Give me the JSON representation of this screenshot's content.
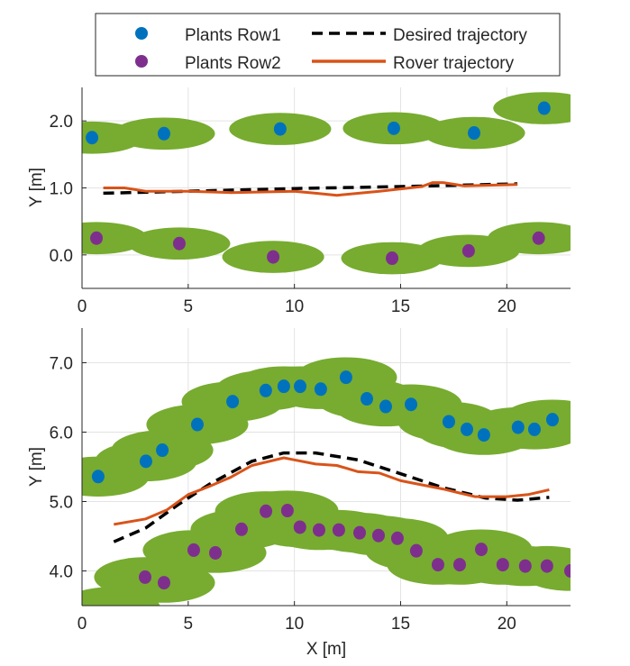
{
  "chart_data": {
    "type": "scatter",
    "colors": {
      "row1": "#0072bd",
      "row2": "#7e2f8e",
      "desired": "#000000",
      "rover": "#d95319",
      "canopy": "#77ac30"
    },
    "legend": {
      "placement": "top",
      "entries": [
        "Plants Row1",
        "Plants Row2",
        "Desired trajectory",
        "Rover trajectory"
      ]
    },
    "xlabel": "X [m]",
    "canopy_semi_axes_m": [
      2.4,
      0.24
    ],
    "panels": [
      {
        "ylabel": "Y [m]",
        "xlim": [
          0,
          23
        ],
        "ylim": [
          -0.5,
          2.5
        ],
        "xticks": [
          0,
          5,
          10,
          15,
          20
        ],
        "xtick_labels": [
          "0",
          "5",
          "10",
          "15",
          "20"
        ],
        "yticks": [
          0,
          1,
          2
        ],
        "ytick_labels": [
          "0.0",
          "1.0",
          "2.0"
        ],
        "grid": true,
        "row1": [
          [
            0.47,
            1.75
          ],
          [
            3.86,
            1.81
          ],
          [
            9.33,
            1.88
          ],
          [
            14.68,
            1.89
          ],
          [
            18.46,
            1.82
          ],
          [
            21.76,
            2.19
          ]
        ],
        "row2": [
          [
            0.68,
            0.25
          ],
          [
            4.58,
            0.17
          ],
          [
            9.0,
            -0.03
          ],
          [
            14.6,
            -0.05
          ],
          [
            18.2,
            0.06
          ],
          [
            21.5,
            0.25
          ]
        ],
        "desired": [
          [
            1,
            0.92
          ],
          [
            5,
            0.95
          ],
          [
            10,
            0.99
          ],
          [
            15,
            1.02
          ],
          [
            20.5,
            1.06
          ]
        ],
        "rover": [
          [
            1,
            1.0
          ],
          [
            2,
            1.0
          ],
          [
            3,
            0.95
          ],
          [
            5,
            0.95
          ],
          [
            7,
            0.93
          ],
          [
            10,
            0.95
          ],
          [
            11,
            0.92
          ],
          [
            12,
            0.89
          ],
          [
            14,
            0.95
          ],
          [
            16,
            1.02
          ],
          [
            16.5,
            1.08
          ],
          [
            17,
            1.08
          ],
          [
            18,
            1.03
          ],
          [
            20.5,
            1.05
          ]
        ]
      },
      {
        "ylabel": "Y [m]",
        "xlim": [
          0,
          23
        ],
        "ylim": [
          3.5,
          7.5
        ],
        "xticks": [
          0,
          5,
          10,
          15,
          20
        ],
        "xtick_labels": [
          "0",
          "5",
          "10",
          "15",
          "20"
        ],
        "yticks": [
          4,
          5,
          6,
          7
        ],
        "ytick_labels": [
          "4.0",
          "5.0",
          "6.0",
          "7.0"
        ],
        "grid": true,
        "row1": [
          [
            0.76,
            5.36
          ],
          [
            3.01,
            5.58
          ],
          [
            3.78,
            5.74
          ],
          [
            5.43,
            6.11
          ],
          [
            7.09,
            6.44
          ],
          [
            8.65,
            6.6
          ],
          [
            9.5,
            6.66
          ],
          [
            10.27,
            6.66
          ],
          [
            11.24,
            6.62
          ],
          [
            12.43,
            6.79
          ],
          [
            13.41,
            6.48
          ],
          [
            14.3,
            6.37
          ],
          [
            15.49,
            6.4
          ],
          [
            17.27,
            6.15
          ],
          [
            18.12,
            6.04
          ],
          [
            18.92,
            5.96
          ],
          [
            20.53,
            6.07
          ],
          [
            21.3,
            6.04
          ],
          [
            22.15,
            6.18
          ]
        ],
        "row2": [
          [
            2.97,
            3.91
          ],
          [
            3.86,
            3.83
          ],
          [
            5.26,
            4.3
          ],
          [
            6.28,
            4.26
          ],
          [
            7.51,
            4.6
          ],
          [
            8.66,
            4.86
          ],
          [
            9.67,
            4.87
          ],
          [
            10.26,
            4.63
          ],
          [
            11.16,
            4.59
          ],
          [
            12.09,
            4.59
          ],
          [
            13.07,
            4.55
          ],
          [
            13.96,
            4.51
          ],
          [
            14.85,
            4.47
          ],
          [
            15.74,
            4.29
          ],
          [
            16.76,
            4.09
          ],
          [
            17.78,
            4.09
          ],
          [
            18.8,
            4.31
          ],
          [
            19.81,
            4.09
          ],
          [
            20.87,
            4.07
          ],
          [
            21.89,
            4.07
          ],
          [
            23.0,
            4.0
          ]
        ],
        "desired": [
          [
            1.5,
            4.42
          ],
          [
            3,
            4.62
          ],
          [
            4.5,
            4.95
          ],
          [
            6,
            5.25
          ],
          [
            8,
            5.58
          ],
          [
            9.5,
            5.7
          ],
          [
            11,
            5.7
          ],
          [
            13,
            5.6
          ],
          [
            15,
            5.4
          ],
          [
            17,
            5.2
          ],
          [
            19,
            5.05
          ],
          [
            20.5,
            5.02
          ],
          [
            22,
            5.06
          ]
        ],
        "rover": [
          [
            1.5,
            4.67
          ],
          [
            3,
            4.75
          ],
          [
            4,
            4.88
          ],
          [
            5,
            5.1
          ],
          [
            6,
            5.22
          ],
          [
            7,
            5.35
          ],
          [
            8,
            5.52
          ],
          [
            9.5,
            5.63
          ],
          [
            10,
            5.6
          ],
          [
            11,
            5.54
          ],
          [
            12,
            5.52
          ],
          [
            13,
            5.43
          ],
          [
            14,
            5.41
          ],
          [
            15,
            5.3
          ],
          [
            17,
            5.18
          ],
          [
            18.5,
            5.07
          ],
          [
            20,
            5.07
          ],
          [
            21,
            5.1
          ],
          [
            22,
            5.17
          ]
        ]
      }
    ]
  }
}
